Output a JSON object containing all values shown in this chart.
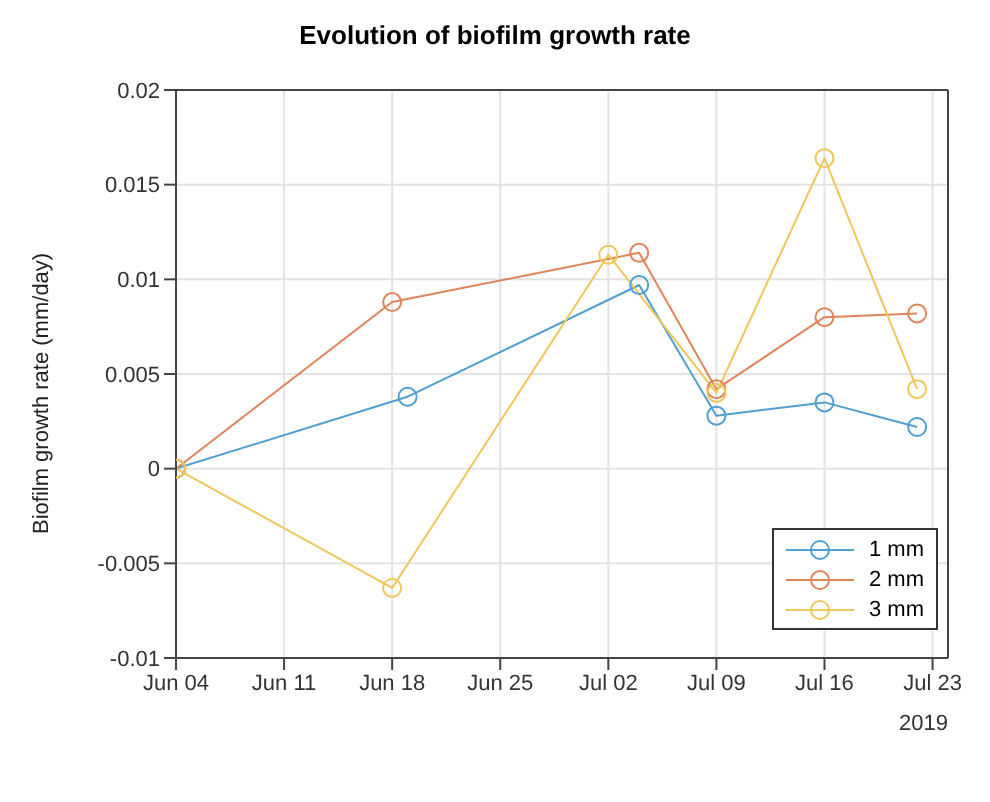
{
  "chart_data": {
    "type": "line",
    "title": "Evolution of biofilm growth rate",
    "ylabel": "Biofilm growth rate (mm/day)",
    "xlabel": "2019",
    "series": [
      {
        "name": "1 mm",
        "color": "#4f9fd1",
        "x": [
          "2019-06-04",
          "2019-06-19",
          "2019-07-04",
          "2019-07-09",
          "2019-07-16",
          "2019-07-22"
        ],
        "values": [
          0,
          0.0038,
          0.0097,
          0.0028,
          0.0035,
          0.0022
        ]
      },
      {
        "name": "2 mm",
        "color": "#e0845a",
        "x": [
          "2019-06-04",
          "2019-06-18",
          "2019-07-04",
          "2019-07-09",
          "2019-07-16",
          "2019-07-22"
        ],
        "values": [
          0,
          0.0088,
          0.0114,
          0.0042,
          0.008,
          0.0082
        ]
      },
      {
        "name": "3 mm",
        "color": "#efc65a",
        "x": [
          "2019-06-04",
          "2019-06-18",
          "2019-07-02",
          "2019-07-09",
          "2019-07-16",
          "2019-07-22"
        ],
        "values": [
          0,
          -0.0063,
          0.0113,
          0.004,
          0.0164,
          0.0042
        ]
      }
    ],
    "xlim": [
      "2019-06-04",
      "2019-07-24"
    ],
    "xticks": [
      {
        "value": "2019-06-04",
        "label": "Jun 04"
      },
      {
        "value": "2019-06-11",
        "label": "Jun 11"
      },
      {
        "value": "2019-06-18",
        "label": "Jun 18"
      },
      {
        "value": "2019-06-25",
        "label": "Jun 25"
      },
      {
        "value": "2019-07-02",
        "label": "Jul 02"
      },
      {
        "value": "2019-07-09",
        "label": "Jul 09"
      },
      {
        "value": "2019-07-16",
        "label": "Jul 16"
      },
      {
        "value": "2019-07-23",
        "label": "Jul 23"
      }
    ],
    "ylim": [
      -0.01,
      0.02
    ],
    "yticks": [
      -0.01,
      -0.005,
      0,
      0.005,
      0.01,
      0.015,
      0.02
    ],
    "grid": true,
    "legend": "bottom right",
    "marker": "circle",
    "line_style": "solid"
  }
}
